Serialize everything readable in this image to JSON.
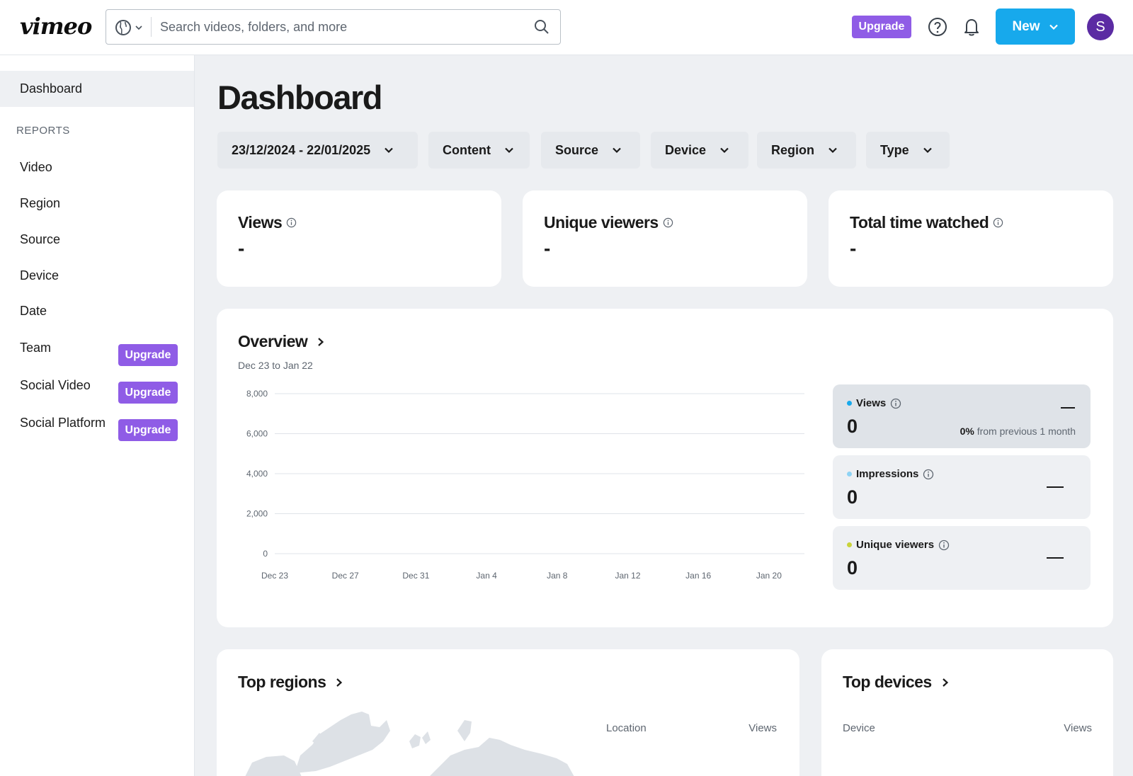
{
  "header": {
    "logo": "vimeo",
    "search_placeholder": "Search videos, folders, and more",
    "upgrade_label": "Upgrade",
    "new_label": "New",
    "avatar_initial": "S"
  },
  "sidebar": {
    "dashboard_label": "Dashboard",
    "reports_heading": "REPORTS",
    "items": [
      {
        "label": "Video"
      },
      {
        "label": "Region"
      },
      {
        "label": "Source"
      },
      {
        "label": "Device"
      },
      {
        "label": "Date"
      },
      {
        "label": "Team",
        "badge": "Upgrade"
      },
      {
        "label": "Social Video",
        "badge": "Upgrade"
      },
      {
        "label": "Social Platform",
        "badge": "Upgrade"
      }
    ]
  },
  "main": {
    "title": "Dashboard",
    "filters": [
      {
        "label": "23/12/2024 - 22/01/2025"
      },
      {
        "label": "Content"
      },
      {
        "label": "Source"
      },
      {
        "label": "Device"
      },
      {
        "label": "Region"
      },
      {
        "label": "Type"
      }
    ],
    "stats": [
      {
        "title": "Views",
        "value": "-"
      },
      {
        "title": "Unique viewers",
        "value": "-"
      },
      {
        "title": "Total time watched",
        "value": "-"
      }
    ],
    "overview": {
      "title": "Overview",
      "subtitle": "Dec 23 to Jan 22",
      "metrics": [
        {
          "label": "Views",
          "value": "0",
          "change_pct": "0%",
          "change_text": "from previous 1 month",
          "dot_color": "#17a9ec"
        },
        {
          "label": "Impressions",
          "value": "0",
          "dot_color": "#8fd3f4"
        },
        {
          "label": "Unique viewers",
          "value": "0",
          "dot_color": "#c9d33a"
        }
      ]
    },
    "top_regions": {
      "title": "Top regions",
      "col_location": "Location",
      "col_views": "Views"
    },
    "top_devices": {
      "title": "Top devices",
      "col_device": "Device",
      "col_views": "Views"
    }
  },
  "chart_data": {
    "type": "line",
    "title": "",
    "ylim": [
      0,
      8000
    ],
    "yticks": [
      "8,000",
      "6,000",
      "4,000",
      "2,000",
      "0"
    ],
    "xticks": [
      "Dec 23",
      "Dec 27",
      "Dec 31",
      "Jan 4",
      "Jan 8",
      "Jan 12",
      "Jan 16",
      "Jan 20"
    ],
    "grid": true,
    "series": []
  }
}
